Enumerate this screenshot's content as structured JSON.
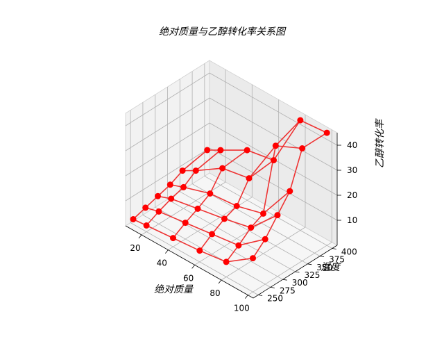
{
  "chart_data": {
    "type": "scatter",
    "title": "绝对质量与乙醇转化率关系图",
    "xlabel": "绝对质量",
    "ylabel": "温度",
    "zlabel": "乙醇转化率",
    "x_ticks": [
      20,
      40,
      60,
      80,
      100
    ],
    "y_ticks": [
      250,
      275,
      300,
      325,
      350,
      375,
      400
    ],
    "z_ticks": [
      10,
      20,
      30,
      40
    ],
    "xlim": [
      8,
      104
    ],
    "ylim": [
      240,
      410
    ],
    "zlim": [
      0,
      45
    ],
    "grid": true,
    "marker_color": "#ff0000",
    "line_color": "#ee3333",
    "x": [
      10,
      20,
      40,
      60,
      80,
      100
    ],
    "y": [
      250,
      275,
      300,
      325,
      350,
      400
    ],
    "z": [
      [
        2.0,
        2.5,
        3.5,
        4.5,
        6.0,
        13.5
      ],
      [
        3.5,
        5.0,
        6.5,
        8.0,
        9.5,
        18.0
      ],
      [
        5.0,
        7.0,
        9.0,
        11.0,
        13.5,
        24.5
      ],
      [
        6.5,
        8.5,
        12.0,
        13.0,
        16.0,
        31.0
      ],
      [
        9.0,
        12.0,
        19.0,
        21.0,
        40.0,
        45.0
      ],
      [
        11.0,
        14.0,
        20.0,
        22.0,
        44.0,
        45.0
      ]
    ]
  }
}
